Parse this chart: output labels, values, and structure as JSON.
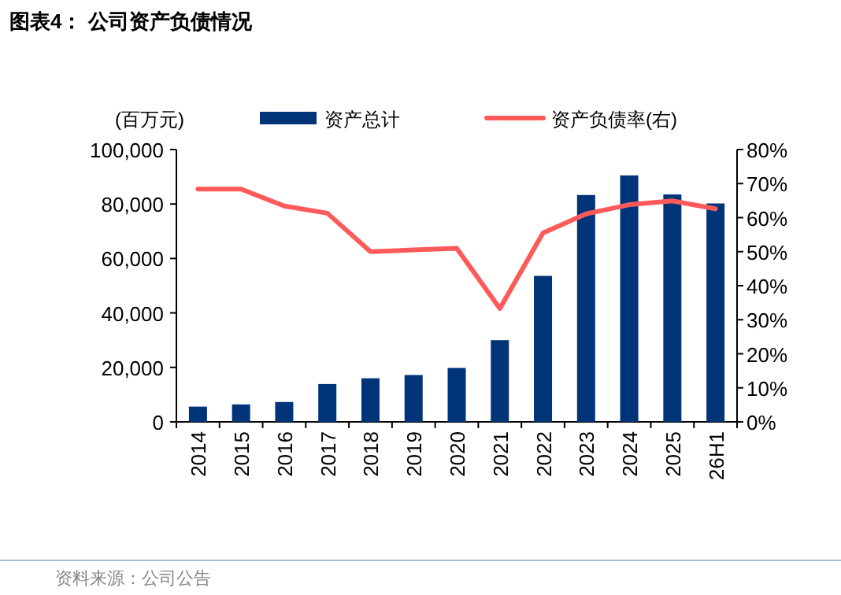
{
  "chart_data": {
    "type": "bar",
    "title": "图表4：  公司资产负债情况",
    "ylabel": "(百万元)",
    "categories": [
      "2014",
      "2015",
      "2016",
      "2017",
      "2018",
      "2019",
      "2020",
      "2021",
      "2022",
      "2023",
      "2024",
      "2025",
      "26H1"
    ],
    "series": [
      {
        "name": "资产总计",
        "color": "#003478",
        "values": [
          5600,
          6400,
          7300,
          13900,
          16000,
          17200,
          19800,
          30000,
          53600,
          83300,
          90500,
          83500,
          80200
        ]
      },
      {
        "name": "资产负债率(右)",
        "type": "line",
        "axis": "y2",
        "color": "#ff5a5a",
        "values": [
          68.4,
          68.4,
          63.4,
          61.3,
          50.0,
          50.5,
          51.0,
          33.3,
          55.5,
          61.1,
          63.8,
          64.9,
          62.6
        ]
      }
    ],
    "ylim": [
      0,
      100000
    ],
    "yticks": [
      {
        "value": 0,
        "label": "0"
      },
      {
        "value": 20000,
        "label": "20,000"
      },
      {
        "value": 40000,
        "label": "40,000"
      },
      {
        "value": 60000,
        "label": "60,000"
      },
      {
        "value": 80000,
        "label": "80,000"
      },
      {
        "value": 100000,
        "label": "100,000"
      }
    ],
    "y2lim": [
      0,
      80
    ],
    "y2ticks": [
      {
        "value": 0,
        "label": "0%"
      },
      {
        "value": 10,
        "label": "10%"
      },
      {
        "value": 20,
        "label": "20%"
      },
      {
        "value": 30,
        "label": "30%"
      },
      {
        "value": 40,
        "label": "40%"
      },
      {
        "value": 50,
        "label": "50%"
      },
      {
        "value": 60,
        "label": "60%"
      },
      {
        "value": 70,
        "label": "70%"
      },
      {
        "value": 80,
        "label": "80%"
      }
    ],
    "legend": "top",
    "grid": false,
    "annotations": [
      "资料来源：公司公告"
    ]
  }
}
